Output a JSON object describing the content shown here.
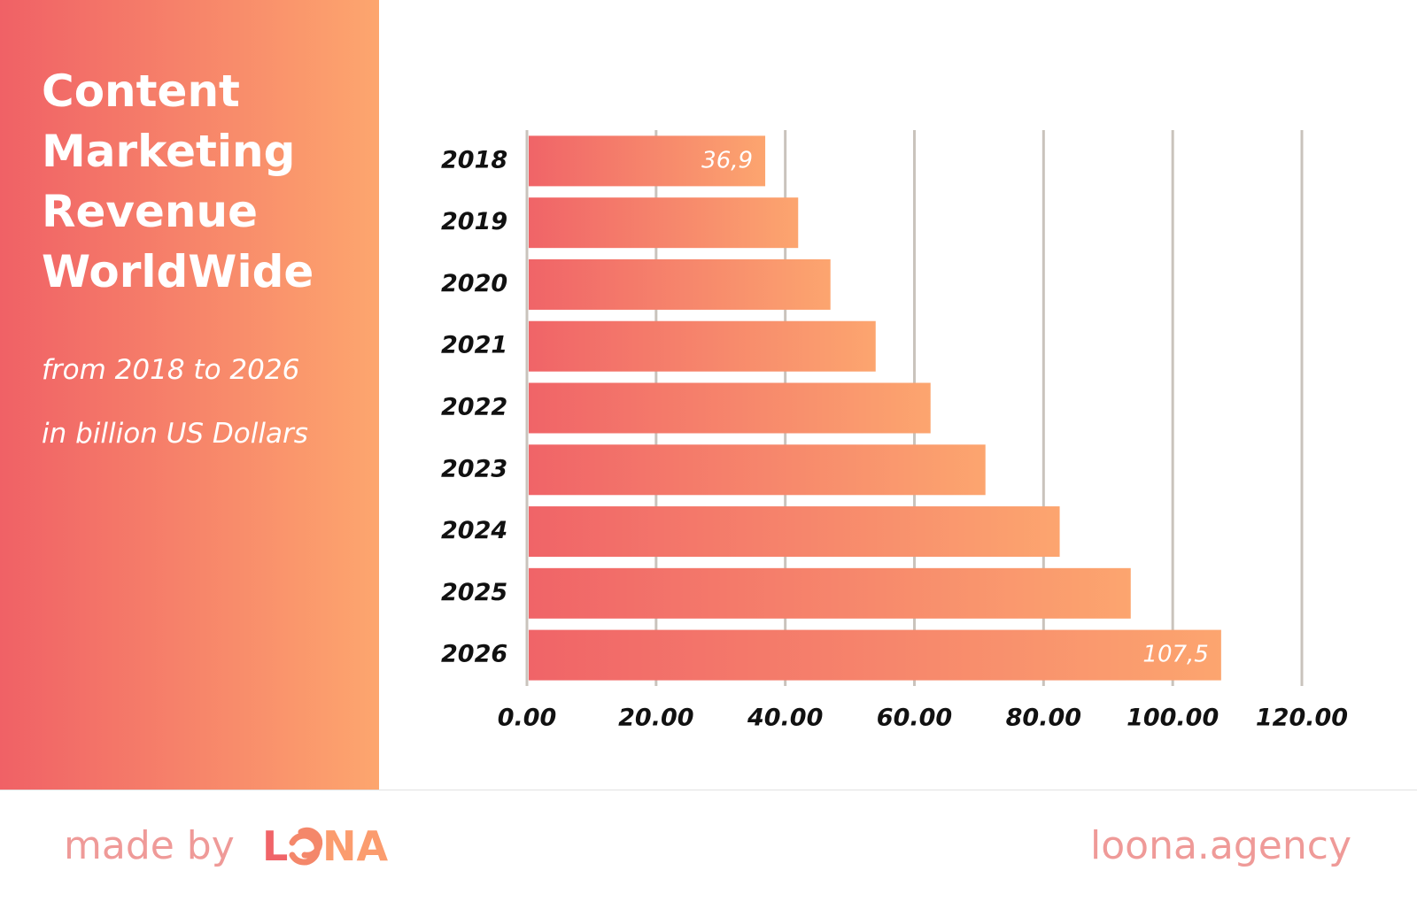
{
  "chart_data": {
    "type": "bar",
    "orientation": "horizontal",
    "title": [
      "Content",
      "Marketing",
      "Revenue",
      "WorldWide"
    ],
    "subtitle": "from 2018 to 2026",
    "unit_note": "in billion US Dollars",
    "categories": [
      "2018",
      "2019",
      "2020",
      "2021",
      "2022",
      "2023",
      "2024",
      "2025",
      "2026"
    ],
    "values": [
      36.9,
      42,
      47,
      54,
      62.5,
      71,
      82.5,
      93.5,
      107.5
    ],
    "value_labels": [
      "36,9",
      null,
      null,
      null,
      null,
      null,
      null,
      null,
      "107,5"
    ],
    "color": [
      "#f06468",
      "#fca56f"
    ],
    "xlim": [
      0,
      120
    ],
    "xticks": [
      {
        "value": 0,
        "label": "0.00"
      },
      {
        "value": 20,
        "label": "20.00"
      },
      {
        "value": 40,
        "label": "40.00"
      },
      {
        "value": 60,
        "label": "60.00"
      },
      {
        "value": 80,
        "label": "80.00"
      },
      {
        "value": 100,
        "label": "100.00"
      },
      {
        "value": 120,
        "label": "120.00"
      }
    ],
    "grid": true
  },
  "footer": {
    "made_by": "made by",
    "logo_left": "L",
    "logo_right": "NA",
    "site": "loona.agency"
  }
}
